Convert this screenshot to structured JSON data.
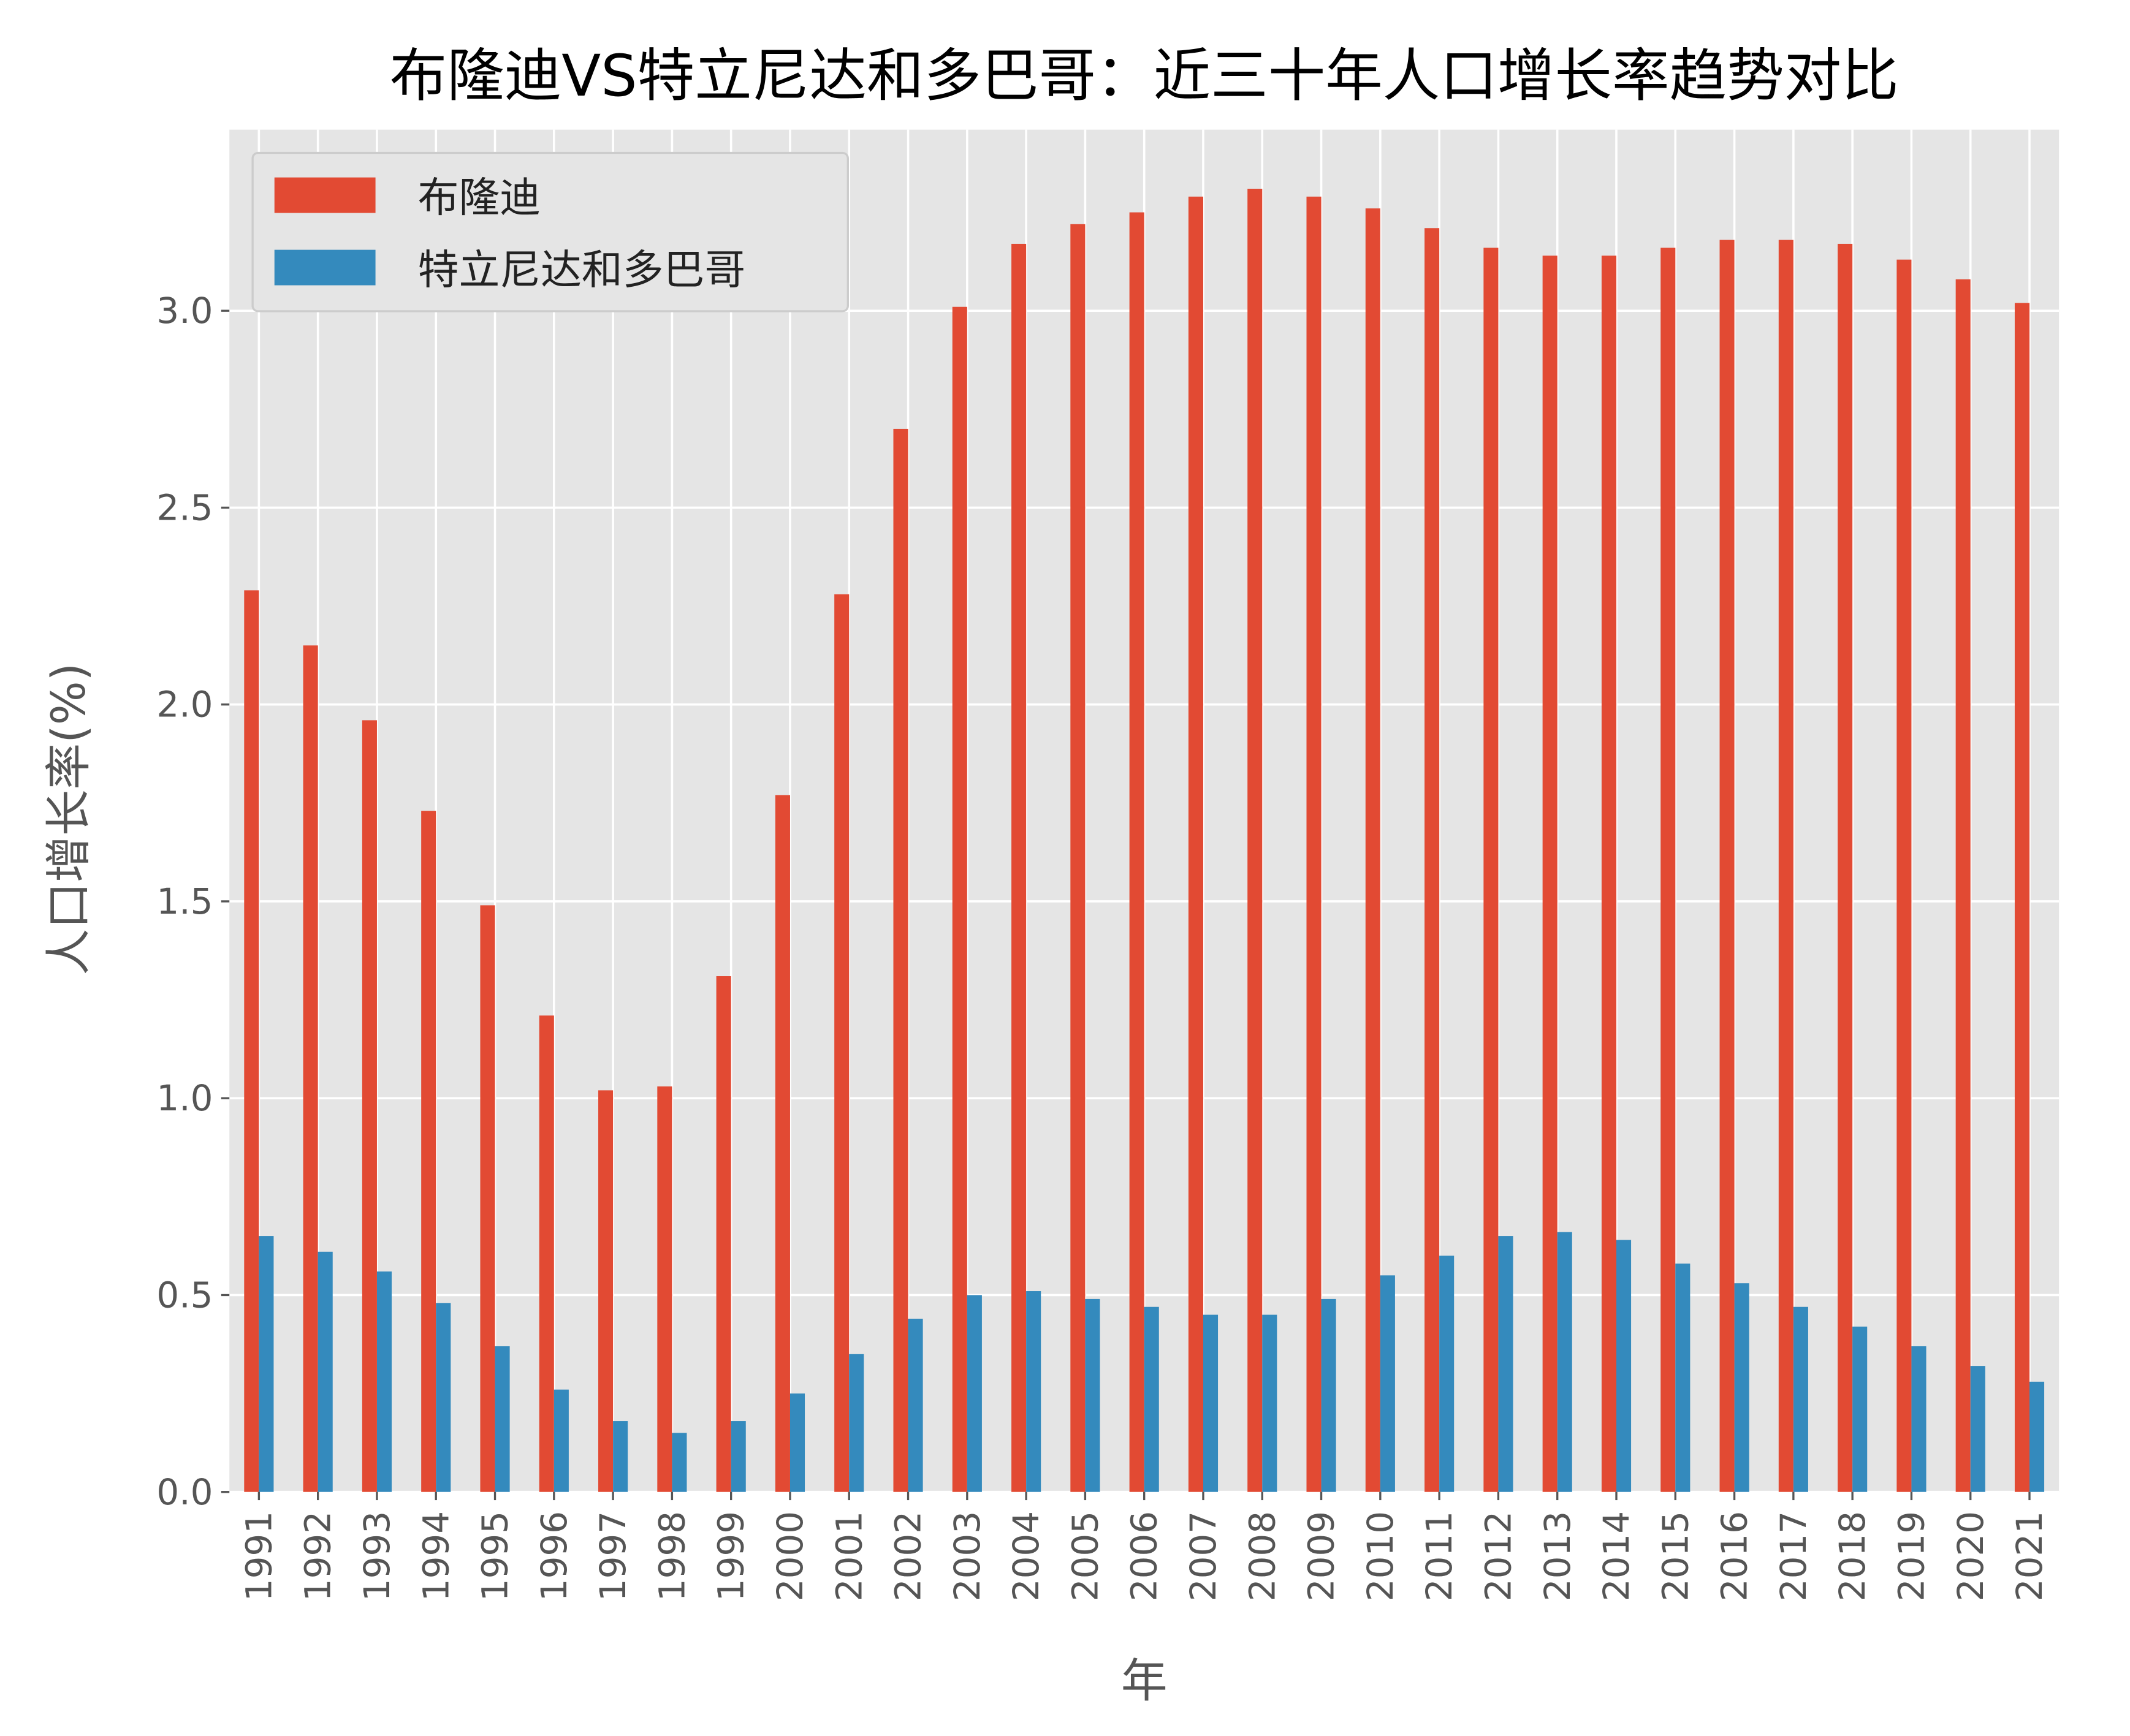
{
  "chart_data": {
    "type": "bar",
    "title": "布隆迪VS特立尼达和多巴哥：近三十年人口增长率趋势对比",
    "xlabel": "年",
    "ylabel": "人口增长率(%)",
    "ylim": [
      0,
      3.46
    ],
    "yticks": [
      "0.0",
      "0.5",
      "1.0",
      "1.5",
      "2.0",
      "2.5",
      "3.0"
    ],
    "grid": true,
    "legend_position": "top-left",
    "categories": [
      "1991",
      "1992",
      "1993",
      "1994",
      "1995",
      "1996",
      "1997",
      "1998",
      "1999",
      "2000",
      "2001",
      "2002",
      "2003",
      "2004",
      "2005",
      "2006",
      "2007",
      "2008",
      "2009",
      "2010",
      "2011",
      "2012",
      "2013",
      "2014",
      "2015",
      "2016",
      "2017",
      "2018",
      "2019",
      "2020",
      "2021"
    ],
    "series": [
      {
        "name": "布隆迪",
        "color": "#E24A33",
        "values": [
          2.29,
          2.15,
          1.96,
          1.73,
          1.49,
          1.21,
          1.02,
          1.03,
          1.31,
          1.77,
          2.28,
          2.7,
          3.01,
          3.17,
          3.22,
          3.25,
          3.29,
          3.31,
          3.29,
          3.26,
          3.21,
          3.16,
          3.14,
          3.14,
          3.16,
          3.18,
          3.18,
          3.17,
          3.13,
          3.08,
          3.02
        ]
      },
      {
        "name": "特立尼达和多巴哥",
        "color": "#348ABD",
        "values": [
          0.65,
          0.61,
          0.56,
          0.48,
          0.37,
          0.26,
          0.18,
          0.15,
          0.18,
          0.25,
          0.35,
          0.44,
          0.5,
          0.51,
          0.49,
          0.47,
          0.45,
          0.45,
          0.49,
          0.55,
          0.6,
          0.65,
          0.66,
          0.64,
          0.58,
          0.53,
          0.47,
          0.42,
          0.37,
          0.32,
          0.28
        ]
      }
    ]
  }
}
